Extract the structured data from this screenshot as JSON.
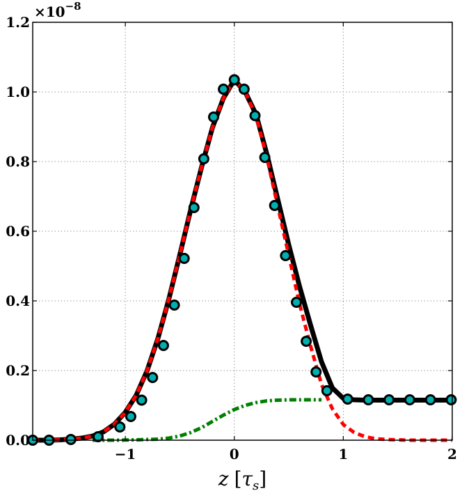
{
  "chart_data": {
    "type": "line",
    "xlabel": "z [τ_s]",
    "xlabel_parts": {
      "var": "z",
      "open": "[",
      "unit": "τ",
      "sub": "s",
      "close": "]"
    },
    "ylabel": "",
    "xlim": [
      -1.85,
      2.0
    ],
    "ylim": [
      0.0,
      1.2
    ],
    "y_offset_label": {
      "base": "×10",
      "exp": "−8"
    },
    "xticks": [
      -1,
      0,
      1,
      2
    ],
    "xtick_labels": [
      "−1",
      "0",
      "1",
      "2"
    ],
    "yticks": [
      0.0,
      0.2,
      0.4,
      0.6,
      0.8,
      1.0,
      1.2
    ],
    "ytick_labels": [
      "0.0",
      "0.2",
      "0.4",
      "0.6",
      "0.8",
      "1.0",
      "1.2"
    ],
    "grid": true,
    "colors": {
      "total": "#000000",
      "gaussian": "#ff0000",
      "step": "#007f00",
      "marker_fill": "#00b0b0",
      "marker_edge": "#000000",
      "grid": "#999999"
    },
    "series": [
      {
        "style": "solid-black-thick",
        "x": [
          -1.85,
          -1.7,
          -1.6,
          -1.5,
          -1.4,
          -1.3,
          -1.2,
          -1.1,
          -1.0,
          -0.9,
          -0.8,
          -0.7,
          -0.6,
          -0.5,
          -0.4,
          -0.3,
          -0.2,
          -0.1,
          0.0,
          0.1,
          0.2,
          0.3,
          0.4,
          0.5,
          0.6,
          0.7,
          0.8,
          0.9,
          1.0,
          1.1,
          1.2,
          1.4,
          1.6,
          1.8,
          2.0
        ],
        "y": [
          0.0,
          0.0,
          0.001,
          0.003,
          0.006,
          0.012,
          0.024,
          0.046,
          0.08,
          0.129,
          0.2,
          0.293,
          0.406,
          0.532,
          0.662,
          0.785,
          0.898,
          0.982,
          1.035,
          1.0,
          0.935,
          0.82,
          0.69,
          0.56,
          0.44,
          0.33,
          0.225,
          0.15,
          0.12,
          0.116,
          0.115,
          0.115,
          0.115,
          0.115,
          0.115
        ]
      },
      {
        "style": "dashed-red",
        "x": [
          -1.85,
          -1.7,
          -1.6,
          -1.5,
          -1.4,
          -1.3,
          -1.2,
          -1.1,
          -1.0,
          -0.9,
          -0.8,
          -0.7,
          -0.6,
          -0.5,
          -0.4,
          -0.3,
          -0.2,
          -0.1,
          0.0,
          0.1,
          0.2,
          0.3,
          0.4,
          0.5,
          0.6,
          0.7,
          0.8,
          0.9,
          1.0,
          1.1,
          1.2,
          1.3,
          1.4,
          1.5,
          1.6,
          1.8,
          2.0
        ],
        "y": [
          0.0,
          0.0,
          0.001,
          0.003,
          0.006,
          0.012,
          0.024,
          0.046,
          0.08,
          0.129,
          0.2,
          0.293,
          0.406,
          0.532,
          0.662,
          0.785,
          0.898,
          0.982,
          1.035,
          1.0,
          0.93,
          0.81,
          0.67,
          0.53,
          0.39,
          0.27,
          0.16,
          0.09,
          0.045,
          0.022,
          0.01,
          0.004,
          0.002,
          0.001,
          0.0,
          0.0,
          0.0
        ]
      },
      {
        "style": "dashdot-green",
        "x": [
          -1.3,
          -1.1,
          -0.9,
          -0.7,
          -0.6,
          -0.5,
          -0.4,
          -0.3,
          -0.2,
          -0.1,
          0.0,
          0.1,
          0.2,
          0.3,
          0.4,
          0.5,
          0.6,
          0.7,
          0.8
        ],
        "y": [
          0.0,
          0.0,
          0.001,
          0.003,
          0.006,
          0.012,
          0.022,
          0.036,
          0.054,
          0.072,
          0.088,
          0.1,
          0.108,
          0.113,
          0.115,
          0.116,
          0.116,
          0.116,
          0.116
        ]
      }
    ],
    "markers": {
      "x": [
        -1.85,
        -1.7,
        -1.5,
        -1.25,
        -1.05,
        -0.95,
        -0.85,
        -0.75,
        -0.65,
        -0.55,
        -0.46,
        -0.37,
        -0.28,
        -0.19,
        -0.1,
        0.0,
        0.09,
        0.19,
        0.28,
        0.37,
        0.47,
        0.57,
        0.66,
        0.75,
        0.85,
        1.04,
        1.23,
        1.42,
        1.61,
        1.8,
        1.99
      ],
      "y": [
        0.0,
        0.0,
        0.002,
        0.01,
        0.038,
        0.068,
        0.115,
        0.18,
        0.272,
        0.388,
        0.522,
        0.668,
        0.808,
        0.928,
        1.008,
        1.035,
        1.008,
        0.932,
        0.812,
        0.674,
        0.53,
        0.396,
        0.284,
        0.196,
        0.142,
        0.118,
        0.116,
        0.116,
        0.116,
        0.116,
        0.116
      ]
    }
  }
}
